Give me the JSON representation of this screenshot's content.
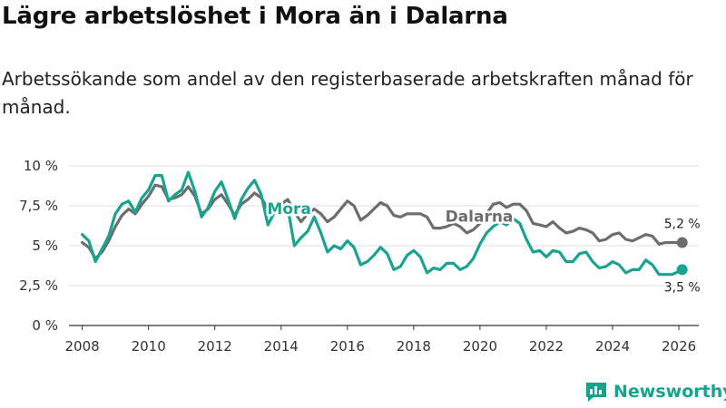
{
  "title": "Lägre arbetslöshet i Mora än i Dalarna",
  "subtitle": "Arbetssökande som andel av den registerbaserade arbetskraften månad för månad.",
  "brand": {
    "name": "Newsworthy",
    "color": "#15a48b"
  },
  "chart_data": {
    "type": "line",
    "title": "Lägre arbetslöshet i Mora än i Dalarna",
    "xlabel": "",
    "ylabel": "",
    "ylim": [
      0,
      10
    ],
    "xlim": [
      2007.6,
      2026.6
    ],
    "grid": true,
    "y_ticks": [
      0,
      2.5,
      5,
      7.5,
      10
    ],
    "y_tick_labels": [
      "0 %",
      "2,5 %",
      "5 %",
      "7,5 %",
      "10 %"
    ],
    "x_ticks": [
      2008,
      2010,
      2012,
      2014,
      2016,
      2018,
      2020,
      2022,
      2024,
      2026
    ],
    "x_tick_labels": [
      "2008",
      "2010",
      "2012",
      "2014",
      "2016",
      "2018",
      "2020",
      "2022",
      "2024",
      "2026"
    ],
    "series": [
      {
        "name": "Dalarna",
        "color": "#6d6d6d",
        "end_label": "5,2 %",
        "points": [
          [
            2008,
            5.2
          ],
          [
            2008.2,
            4.9
          ],
          [
            2008.4,
            4.2
          ],
          [
            2008.6,
            4.6
          ],
          [
            2008.8,
            5.3
          ],
          [
            2009,
            6.2
          ],
          [
            2009.2,
            6.9
          ],
          [
            2009.4,
            7.3
          ],
          [
            2009.6,
            7.0
          ],
          [
            2009.8,
            7.6
          ],
          [
            2010,
            8.1
          ],
          [
            2010.2,
            8.8
          ],
          [
            2010.4,
            8.7
          ],
          [
            2010.6,
            7.9
          ],
          [
            2010.8,
            8.0
          ],
          [
            2011,
            8.2
          ],
          [
            2011.2,
            8.7
          ],
          [
            2011.4,
            8.1
          ],
          [
            2011.6,
            7.0
          ],
          [
            2011.8,
            7.3
          ],
          [
            2012,
            7.9
          ],
          [
            2012.2,
            8.2
          ],
          [
            2012.4,
            7.6
          ],
          [
            2012.6,
            6.9
          ],
          [
            2012.8,
            7.6
          ],
          [
            2013,
            7.9
          ],
          [
            2013.2,
            8.3
          ],
          [
            2013.4,
            8.0
          ],
          [
            2013.6,
            7.3
          ],
          [
            2013.8,
            7.5
          ],
          [
            2014,
            7.6
          ],
          [
            2014.2,
            7.9
          ],
          [
            2014.4,
            7.1
          ],
          [
            2014.6,
            6.5
          ],
          [
            2014.8,
            7.0
          ],
          [
            2015,
            7.3
          ],
          [
            2015.2,
            7.0
          ],
          [
            2015.4,
            6.5
          ],
          [
            2015.6,
            6.8
          ],
          [
            2015.8,
            7.3
          ],
          [
            2016,
            7.8
          ],
          [
            2016.2,
            7.5
          ],
          [
            2016.4,
            6.6
          ],
          [
            2016.6,
            6.9
          ],
          [
            2016.8,
            7.3
          ],
          [
            2017,
            7.7
          ],
          [
            2017.2,
            7.5
          ],
          [
            2017.4,
            6.9
          ],
          [
            2017.6,
            6.8
          ],
          [
            2017.8,
            7.0
          ],
          [
            2018,
            7.0
          ],
          [
            2018.2,
            7.0
          ],
          [
            2018.4,
            6.8
          ],
          [
            2018.6,
            6.1
          ],
          [
            2018.8,
            6.1
          ],
          [
            2019,
            6.2
          ],
          [
            2019.2,
            6.4
          ],
          [
            2019.4,
            6.2
          ],
          [
            2019.6,
            5.8
          ],
          [
            2019.8,
            6.0
          ],
          [
            2020,
            6.4
          ],
          [
            2020.2,
            7.0
          ],
          [
            2020.4,
            7.6
          ],
          [
            2020.6,
            7.7
          ],
          [
            2020.8,
            7.4
          ],
          [
            2021,
            7.6
          ],
          [
            2021.2,
            7.6
          ],
          [
            2021.4,
            7.2
          ],
          [
            2021.6,
            6.4
          ],
          [
            2021.8,
            6.3
          ],
          [
            2022,
            6.2
          ],
          [
            2022.2,
            6.5
          ],
          [
            2022.4,
            6.1
          ],
          [
            2022.6,
            5.8
          ],
          [
            2022.8,
            5.9
          ],
          [
            2023,
            6.1
          ],
          [
            2023.2,
            6.0
          ],
          [
            2023.4,
            5.8
          ],
          [
            2023.6,
            5.3
          ],
          [
            2023.8,
            5.4
          ],
          [
            2024,
            5.7
          ],
          [
            2024.2,
            5.8
          ],
          [
            2024.4,
            5.4
          ],
          [
            2024.6,
            5.3
          ],
          [
            2024.8,
            5.5
          ],
          [
            2025,
            5.7
          ],
          [
            2025.2,
            5.6
          ],
          [
            2025.4,
            5.1
          ],
          [
            2025.6,
            5.2
          ],
          [
            2025.8,
            5.2
          ],
          [
            2026.1,
            5.2
          ]
        ]
      },
      {
        "name": "Mora",
        "color": "#1aa390",
        "end_label": "3,5 %",
        "points": [
          [
            2008,
            5.7
          ],
          [
            2008.2,
            5.3
          ],
          [
            2008.4,
            4.0
          ],
          [
            2008.6,
            4.8
          ],
          [
            2008.8,
            5.6
          ],
          [
            2009,
            7.0
          ],
          [
            2009.2,
            7.6
          ],
          [
            2009.4,
            7.8
          ],
          [
            2009.6,
            7.1
          ],
          [
            2009.8,
            8.0
          ],
          [
            2010,
            8.5
          ],
          [
            2010.2,
            9.4
          ],
          [
            2010.4,
            9.4
          ],
          [
            2010.6,
            7.8
          ],
          [
            2010.8,
            8.2
          ],
          [
            2011,
            8.5
          ],
          [
            2011.2,
            9.6
          ],
          [
            2011.4,
            8.4
          ],
          [
            2011.6,
            6.8
          ],
          [
            2011.8,
            7.4
          ],
          [
            2012,
            8.4
          ],
          [
            2012.2,
            9.0
          ],
          [
            2012.4,
            7.9
          ],
          [
            2012.6,
            6.7
          ],
          [
            2012.8,
            7.9
          ],
          [
            2013,
            8.6
          ],
          [
            2013.2,
            9.1
          ],
          [
            2013.4,
            8.2
          ],
          [
            2013.6,
            6.3
          ],
          [
            2013.8,
            7.1
          ],
          [
            2014,
            7.7
          ],
          [
            2014.2,
            7.4
          ],
          [
            2014.4,
            5.0
          ],
          [
            2014.6,
            5.5
          ],
          [
            2014.8,
            5.9
          ],
          [
            2015,
            6.8
          ],
          [
            2015.2,
            5.8
          ],
          [
            2015.4,
            4.6
          ],
          [
            2015.6,
            5.0
          ],
          [
            2015.8,
            4.8
          ],
          [
            2016,
            5.3
          ],
          [
            2016.2,
            4.9
          ],
          [
            2016.4,
            3.8
          ],
          [
            2016.6,
            4.0
          ],
          [
            2016.8,
            4.4
          ],
          [
            2017,
            4.9
          ],
          [
            2017.2,
            4.5
          ],
          [
            2017.4,
            3.5
          ],
          [
            2017.6,
            3.7
          ],
          [
            2017.8,
            4.4
          ],
          [
            2018,
            4.7
          ],
          [
            2018.2,
            4.3
          ],
          [
            2018.4,
            3.3
          ],
          [
            2018.6,
            3.6
          ],
          [
            2018.8,
            3.5
          ],
          [
            2019,
            3.9
          ],
          [
            2019.2,
            3.9
          ],
          [
            2019.4,
            3.5
          ],
          [
            2019.6,
            3.7
          ],
          [
            2019.8,
            4.2
          ],
          [
            2020,
            5.1
          ],
          [
            2020.2,
            5.8
          ],
          [
            2020.4,
            6.2
          ],
          [
            2020.6,
            6.5
          ],
          [
            2020.8,
            6.3
          ],
          [
            2021,
            6.7
          ],
          [
            2021.2,
            6.4
          ],
          [
            2021.4,
            5.4
          ],
          [
            2021.6,
            4.6
          ],
          [
            2021.8,
            4.7
          ],
          [
            2022,
            4.3
          ],
          [
            2022.2,
            4.7
          ],
          [
            2022.4,
            4.6
          ],
          [
            2022.6,
            4.0
          ],
          [
            2022.8,
            4.0
          ],
          [
            2023,
            4.5
          ],
          [
            2023.2,
            4.6
          ],
          [
            2023.4,
            4.0
          ],
          [
            2023.6,
            3.6
          ],
          [
            2023.8,
            3.7
          ],
          [
            2024,
            4.0
          ],
          [
            2024.2,
            3.8
          ],
          [
            2024.4,
            3.3
          ],
          [
            2024.6,
            3.5
          ],
          [
            2024.8,
            3.5
          ],
          [
            2025,
            4.1
          ],
          [
            2025.2,
            3.8
          ],
          [
            2025.4,
            3.2
          ],
          [
            2025.6,
            3.2
          ],
          [
            2025.8,
            3.2
          ],
          [
            2026.1,
            3.5
          ]
        ]
      }
    ]
  }
}
